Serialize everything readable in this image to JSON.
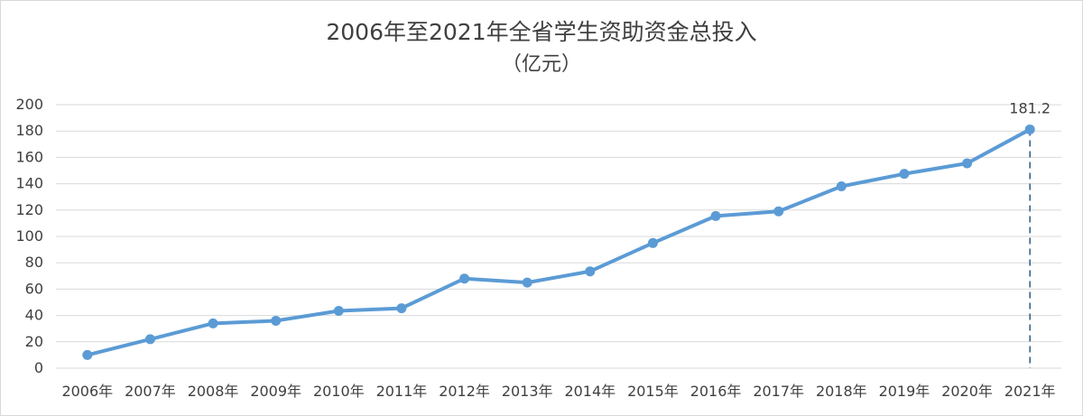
{
  "chart_data": {
    "type": "line",
    "title": "2006年至2021年全省学生资助资金总投入",
    "subtitle": "（亿元）",
    "categories": [
      "2006年",
      "2007年",
      "2008年",
      "2009年",
      "2010年",
      "2011年",
      "2012年",
      "2013年",
      "2014年",
      "2015年",
      "2016年",
      "2017年",
      "2018年",
      "2019年",
      "2020年",
      "2021年"
    ],
    "series": [
      {
        "values": [
          10,
          22,
          34,
          36,
          43.5,
          45.5,
          68,
          65,
          73.5,
          95,
          115.5,
          119,
          138,
          147.5,
          155.5,
          181.2
        ]
      }
    ],
    "data_labels": [
      {
        "category": "2021年",
        "text": "181.2"
      }
    ],
    "ylim": [
      0,
      200
    ],
    "yticks": [
      0,
      20,
      40,
      60,
      80,
      100,
      120,
      140,
      160,
      180,
      200
    ],
    "grid": true,
    "legend": "none",
    "colors": {
      "line": "#5B9BD5",
      "grid": "#d9d9d9",
      "text": "#404040",
      "drop_line": "#1f4e79"
    }
  }
}
